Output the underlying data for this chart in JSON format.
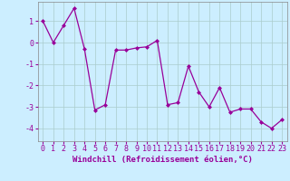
{
  "x": [
    0,
    1,
    2,
    3,
    4,
    5,
    6,
    7,
    8,
    9,
    10,
    11,
    12,
    13,
    14,
    15,
    16,
    17,
    18,
    19,
    20,
    21,
    22,
    23
  ],
  "y": [
    1.0,
    0.0,
    0.8,
    1.6,
    -0.3,
    -3.15,
    -2.9,
    -0.35,
    -0.35,
    -0.25,
    -0.2,
    0.1,
    -2.9,
    -2.8,
    -1.1,
    -2.3,
    -3.0,
    -2.1,
    -3.25,
    -3.1,
    -3.1,
    -3.7,
    -4.0,
    -3.6
  ],
  "line_color": "#990099",
  "marker": "D",
  "markersize": 2.0,
  "linewidth": 0.9,
  "xlabel": "Windchill (Refroidissement éolien,°C)",
  "xlabel_fontsize": 6.5,
  "xlabel_color": "#990099",
  "xtick_labels": [
    "0",
    "1",
    "2",
    "3",
    "4",
    "5",
    "6",
    "7",
    "8",
    "9",
    "10",
    "11",
    "12",
    "13",
    "14",
    "15",
    "16",
    "17",
    "18",
    "19",
    "20",
    "21",
    "22",
    "23"
  ],
  "ytick_values": [
    -4,
    -3,
    -2,
    -1,
    0,
    1
  ],
  "ylim": [
    -4.6,
    1.9
  ],
  "xlim": [
    -0.5,
    23.5
  ],
  "bg_color": "#cceeff",
  "grid_color": "#aacccc",
  "tick_fontsize": 6.0,
  "tick_color": "#990099",
  "spine_color": "#888888"
}
